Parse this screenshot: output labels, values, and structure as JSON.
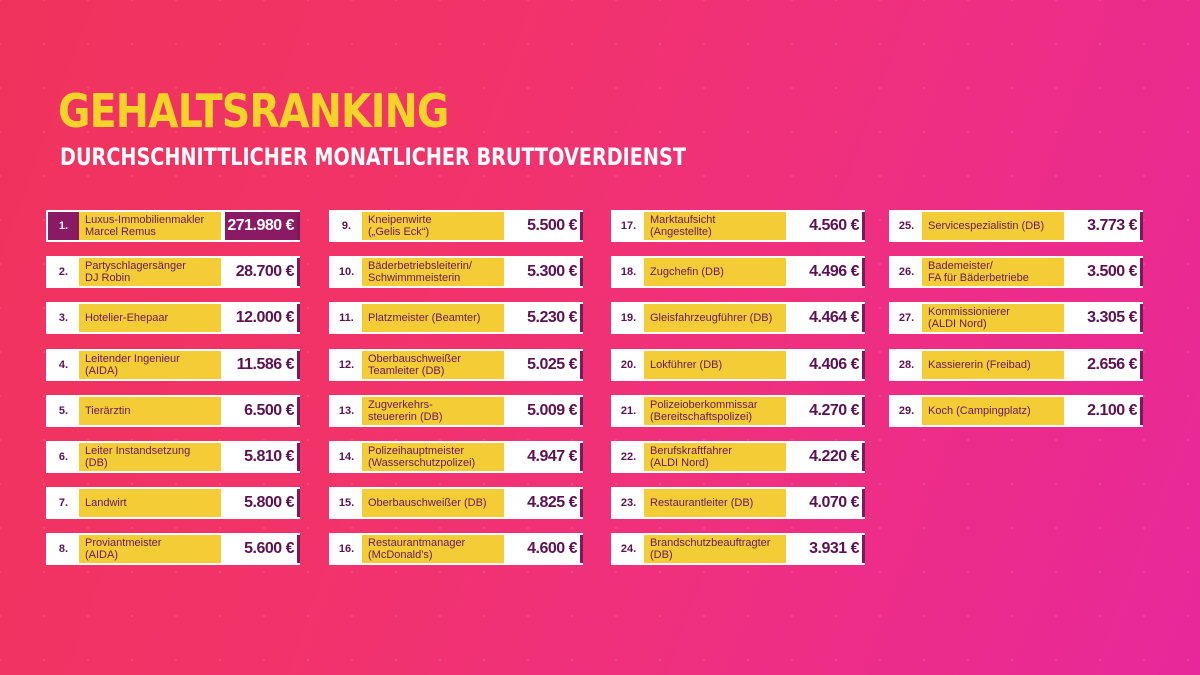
{
  "title": "GEHALTSRANKING",
  "subtitle": "DURCHSCHNITTLICHER MONATLICHER BRUTTOVERDIENST",
  "colors": {
    "accent": "#f5d42a",
    "name_bg": "#f4cc35",
    "dark": "#7a1a5c",
    "highlight": "#8a1a63"
  },
  "columns": [
    [
      {
        "rank": "1.",
        "name": "Luxus-Immobilienmakler\nMarcel Remus",
        "amount": "271.980 €"
      },
      {
        "rank": "2.",
        "name": "Partyschlagersänger\nDJ Robin",
        "amount": "28.700 €"
      },
      {
        "rank": "3.",
        "name": "Hotelier-Ehepaar",
        "amount": "12.000 €"
      },
      {
        "rank": "4.",
        "name": "Leitender Ingenieur\n(AIDA)",
        "amount": "11.586 €"
      },
      {
        "rank": "5.",
        "name": "Tierärztin",
        "amount": "6.500 €"
      },
      {
        "rank": "6.",
        "name": "Leiter Instandsetzung\n(DB)",
        "amount": "5.810 €"
      },
      {
        "rank": "7.",
        "name": "Landwirt",
        "amount": "5.800 €"
      },
      {
        "rank": "8.",
        "name": "Proviantmeister\n(AIDA)",
        "amount": "5.600 €"
      }
    ],
    [
      {
        "rank": "9.",
        "name": "Kneipenwirte\n(„Gelis Eck“)",
        "amount": "5.500 €"
      },
      {
        "rank": "10.",
        "name": "Bäderbetriebsleiterin/\nSchwimmmeisterin",
        "amount": "5.300 €"
      },
      {
        "rank": "11.",
        "name": "Platzmeister (Beamter)",
        "amount": "5.230 €"
      },
      {
        "rank": "12.",
        "name": "Oberbauschweißer\nTeamleiter (DB)",
        "amount": "5.025 €"
      },
      {
        "rank": "13.",
        "name": "Zugverkehrs-\nsteuererin (DB)",
        "amount": "5.009 €"
      },
      {
        "rank": "14.",
        "name": "Polizeihauptmeister\n(Wasserschutzpolizei)",
        "amount": "4.947 €"
      },
      {
        "rank": "15.",
        "name": "Oberbauschweißer (DB)",
        "amount": "4.825 €"
      },
      {
        "rank": "16.",
        "name": "Restaurantmanager\n(McDonald’s)",
        "amount": "4.600 €"
      }
    ],
    [
      {
        "rank": "17.",
        "name": "Marktaufsicht\n(Angestellte)",
        "amount": "4.560 €"
      },
      {
        "rank": "18.",
        "name": "Zugchefin (DB)",
        "amount": "4.496 €"
      },
      {
        "rank": "19.",
        "name": "Gleisfahrzeugführer (DB)",
        "amount": "4.464 €"
      },
      {
        "rank": "20.",
        "name": "Lokführer (DB)",
        "amount": "4.406 €"
      },
      {
        "rank": "21.",
        "name": "Polizeioberkommissar\n(Bereitschaftspolizei)",
        "amount": "4.270 €"
      },
      {
        "rank": "22.",
        "name": "Berufskraftfahrer\n(ALDI Nord)",
        "amount": "4.220 €"
      },
      {
        "rank": "23.",
        "name": "Restaurantleiter (DB)",
        "amount": "4.070 €"
      },
      {
        "rank": "24.",
        "name": "Brandschutzbeauftragter\n(DB)",
        "amount": "3.931 €"
      }
    ],
    [
      {
        "rank": "25.",
        "name": "Servicespezialistin (DB)",
        "amount": "3.773 €"
      },
      {
        "rank": "26.",
        "name": "Bademeister/\nFA für Bäderbetriebe",
        "amount": "3.500 €"
      },
      {
        "rank": "27.",
        "name": "Kommissionierer\n(ALDI Nord)",
        "amount": "3.305 €"
      },
      {
        "rank": "28.",
        "name": "Kassiererin (Freibad)",
        "amount": "2.656 €"
      },
      {
        "rank": "29.",
        "name": "Koch (Campingplatz)",
        "amount": "2.100 €"
      }
    ]
  ]
}
